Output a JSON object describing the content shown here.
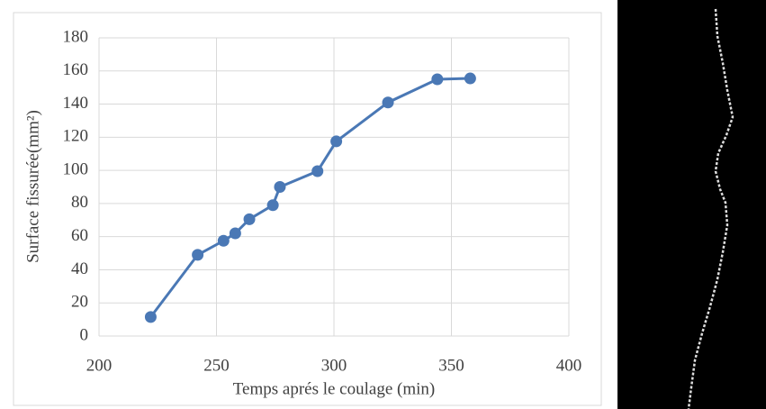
{
  "chart_data": {
    "type": "line",
    "x_label": "Temps aprés le coulage (min)",
    "y_label": "Surface fissurée(mm²)",
    "x": [
      222,
      242,
      253,
      258,
      264,
      274,
      277,
      293,
      301,
      323,
      344,
      358
    ],
    "values": [
      11.5,
      49,
      57.5,
      62,
      70.5,
      79,
      90,
      99.5,
      117.5,
      141,
      155,
      155.5
    ],
    "color": "#4a78b5",
    "xlim": [
      200,
      400
    ],
    "xticks": [
      200,
      250,
      300,
      350,
      400
    ],
    "ylim": [
      0,
      180
    ],
    "yticks": [
      0,
      20,
      40,
      60,
      80,
      100,
      120,
      140,
      160,
      180
    ],
    "grid": true
  }
}
